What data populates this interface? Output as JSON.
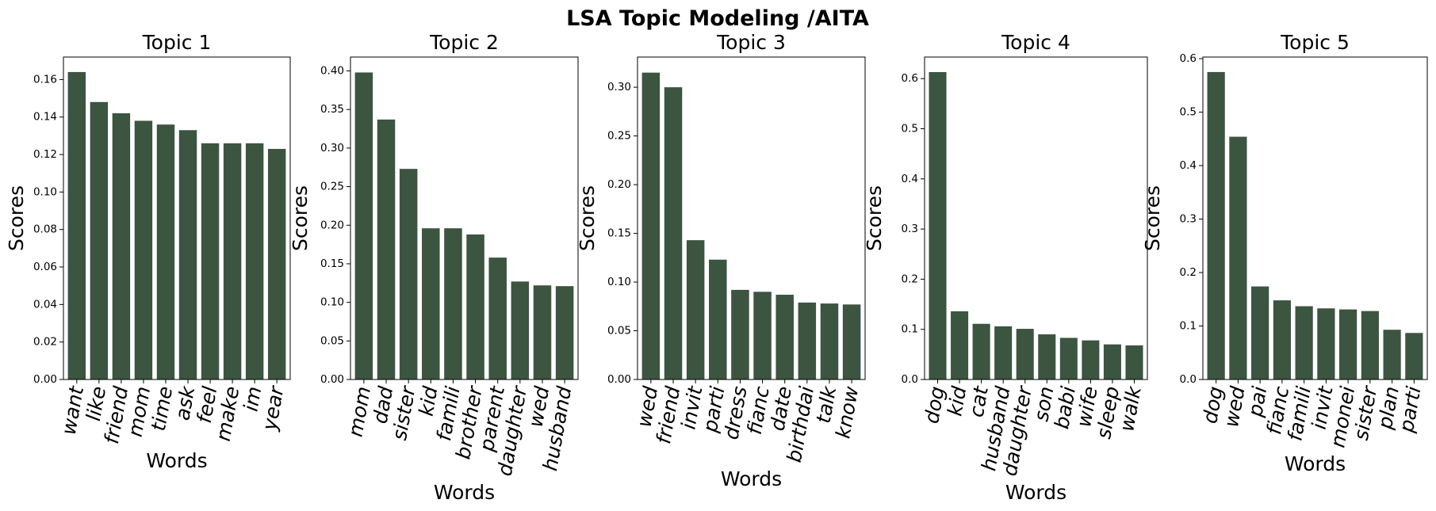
{
  "figure": {
    "title": "LSA Topic Modeling /AITA",
    "bar_color": "#3b5540"
  },
  "chart_data": [
    {
      "type": "bar",
      "title": "Topic 1",
      "xlabel": "Words",
      "ylabel": "Scores",
      "categories": [
        "want",
        "like",
        "friend",
        "mom",
        "time",
        "ask",
        "feel",
        "make",
        "im",
        "year"
      ],
      "values": [
        0.164,
        0.148,
        0.142,
        0.138,
        0.136,
        0.133,
        0.126,
        0.126,
        0.126,
        0.123
      ],
      "ylim": [
        0,
        0.172
      ],
      "yticks": [
        0.0,
        0.02,
        0.04,
        0.06,
        0.08,
        0.1,
        0.12,
        0.14,
        0.16
      ],
      "ytick_labels": [
        "0.00",
        "0.02",
        "0.04",
        "0.06",
        "0.08",
        "0.10",
        "0.12",
        "0.14",
        "0.16"
      ]
    },
    {
      "type": "bar",
      "title": "Topic 2",
      "xlabel": "Words",
      "ylabel": "Scores",
      "categories": [
        "mom",
        "dad",
        "sister",
        "kid",
        "famili",
        "brother",
        "parent",
        "daughter",
        "wed",
        "husband"
      ],
      "values": [
        0.398,
        0.337,
        0.273,
        0.196,
        0.196,
        0.188,
        0.158,
        0.127,
        0.122,
        0.121
      ],
      "ylim": [
        0,
        0.418
      ],
      "yticks": [
        0.0,
        0.05,
        0.1,
        0.15,
        0.2,
        0.25,
        0.3,
        0.35,
        0.4
      ],
      "ytick_labels": [
        "0.00",
        "0.05",
        "0.10",
        "0.15",
        "0.20",
        "0.25",
        "0.30",
        "0.35",
        "0.40"
      ]
    },
    {
      "type": "bar",
      "title": "Topic 3",
      "xlabel": "Words",
      "ylabel": "Scores",
      "categories": [
        "wed",
        "friend",
        "invit",
        "parti",
        "dress",
        "fianc",
        "date",
        "birthdai",
        "talk",
        "know"
      ],
      "values": [
        0.315,
        0.3,
        0.143,
        0.123,
        0.092,
        0.09,
        0.087,
        0.079,
        0.078,
        0.077
      ],
      "ylim": [
        0,
        0.331
      ],
      "yticks": [
        0.0,
        0.05,
        0.1,
        0.15,
        0.2,
        0.25,
        0.3
      ],
      "ytick_labels": [
        "0.00",
        "0.05",
        "0.10",
        "0.15",
        "0.20",
        "0.25",
        "0.30"
      ]
    },
    {
      "type": "bar",
      "title": "Topic 4",
      "xlabel": "Words",
      "ylabel": "Scores",
      "categories": [
        "dog",
        "kid",
        "cat",
        "husband",
        "daughter",
        "son",
        "babi",
        "wife",
        "sleep",
        "walk"
      ],
      "values": [
        0.613,
        0.136,
        0.111,
        0.106,
        0.101,
        0.09,
        0.083,
        0.078,
        0.07,
        0.068
      ],
      "ylim": [
        0,
        0.643
      ],
      "yticks": [
        0.0,
        0.1,
        0.2,
        0.3,
        0.4,
        0.5,
        0.6
      ],
      "ytick_labels": [
        "0.0",
        "0.1",
        "0.2",
        "0.3",
        "0.4",
        "0.5",
        "0.6"
      ]
    },
    {
      "type": "bar",
      "title": "Topic 5",
      "xlabel": "Words",
      "ylabel": "Scores",
      "categories": [
        "dog",
        "wed",
        "pai",
        "fianc",
        "famili",
        "invit",
        "monei",
        "sister",
        "plan",
        "parti"
      ],
      "values": [
        0.575,
        0.454,
        0.174,
        0.148,
        0.137,
        0.133,
        0.131,
        0.128,
        0.093,
        0.087
      ],
      "ylim": [
        0,
        0.603
      ],
      "yticks": [
        0.0,
        0.1,
        0.2,
        0.3,
        0.4,
        0.5,
        0.6
      ],
      "ytick_labels": [
        "0.0",
        "0.1",
        "0.2",
        "0.3",
        "0.4",
        "0.5",
        "0.6"
      ]
    }
  ]
}
